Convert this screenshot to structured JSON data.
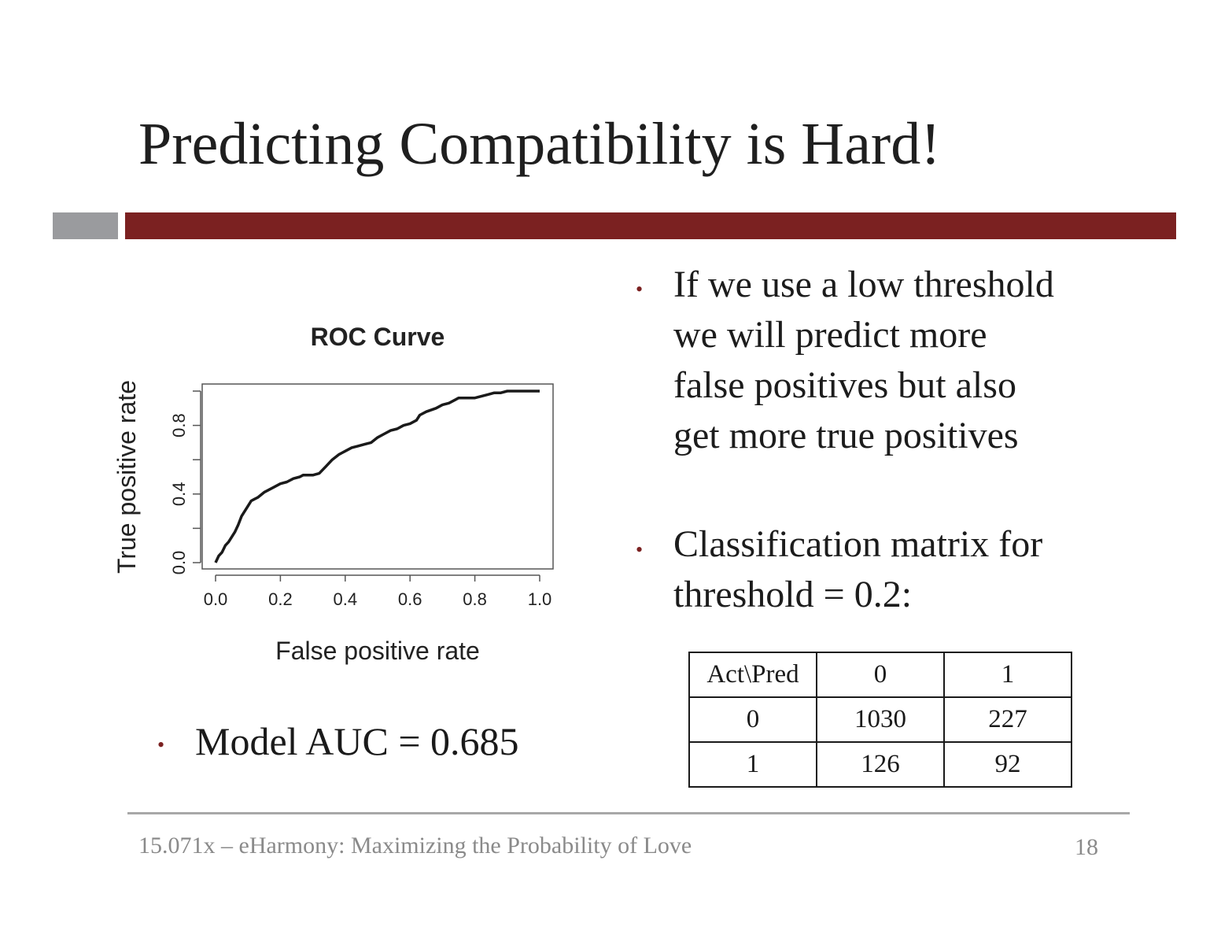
{
  "slide": {
    "title": "Predicting Compatibility is Hard!",
    "bullet_right_1": [
      "If we use a low threshold",
      "we will predict more",
      "false positives but also",
      "get more true positives"
    ],
    "bullet_right_2": [
      "Classification matrix for",
      "threshold = 0.2:"
    ],
    "bullet_left": "Model AUC = 0.685",
    "bullet_glyph": "•",
    "accent_color": "#7b2121",
    "gray_color": "#9a9b9e"
  },
  "matrix": {
    "header": [
      "Act\\Pred",
      "0",
      "1"
    ],
    "rows": [
      [
        "0",
        "1030",
        "227"
      ],
      [
        "1",
        "126",
        "92"
      ]
    ]
  },
  "footer": {
    "text": "15.071x – eHarmony: Maximizing the Probability of Love",
    "page": "18"
  },
  "chart_data": {
    "type": "line",
    "title": "ROC Curve",
    "xlabel": "False positive rate",
    "ylabel": "True positive rate",
    "xlim": [
      0,
      1
    ],
    "ylim": [
      0,
      1
    ],
    "xticks": [
      "0.0",
      "0.2",
      "0.4",
      "0.6",
      "0.8",
      "1.0"
    ],
    "yticks": [
      "0.0",
      "0.4",
      "0.8"
    ],
    "yminor": [
      0.2,
      0.6,
      1.0
    ],
    "grid": false,
    "series": [
      {
        "x": [
          0.0,
          0.01,
          0.02,
          0.03,
          0.04,
          0.05,
          0.06,
          0.07,
          0.08,
          0.09,
          0.1,
          0.11,
          0.12,
          0.13,
          0.15,
          0.16,
          0.18,
          0.2,
          0.22,
          0.24,
          0.26,
          0.27,
          0.3,
          0.32,
          0.34,
          0.35,
          0.36,
          0.38,
          0.39,
          0.4,
          0.42,
          0.44,
          0.46,
          0.48,
          0.5,
          0.52,
          0.54,
          0.56,
          0.58,
          0.6,
          0.62,
          0.63,
          0.65,
          0.68,
          0.7,
          0.72,
          0.74,
          0.75,
          0.78,
          0.8,
          0.84,
          0.86,
          0.88,
          0.9,
          0.92,
          0.95,
          1.0
        ],
        "y": [
          0.0,
          0.04,
          0.06,
          0.1,
          0.12,
          0.15,
          0.18,
          0.22,
          0.27,
          0.3,
          0.33,
          0.36,
          0.37,
          0.38,
          0.41,
          0.42,
          0.44,
          0.46,
          0.47,
          0.49,
          0.5,
          0.51,
          0.51,
          0.52,
          0.56,
          0.58,
          0.6,
          0.63,
          0.64,
          0.65,
          0.67,
          0.68,
          0.69,
          0.7,
          0.73,
          0.75,
          0.77,
          0.78,
          0.8,
          0.81,
          0.83,
          0.86,
          0.88,
          0.9,
          0.92,
          0.93,
          0.95,
          0.96,
          0.96,
          0.96,
          0.98,
          0.99,
          0.99,
          1.0,
          1.0,
          1.0,
          1.0
        ]
      }
    ]
  }
}
